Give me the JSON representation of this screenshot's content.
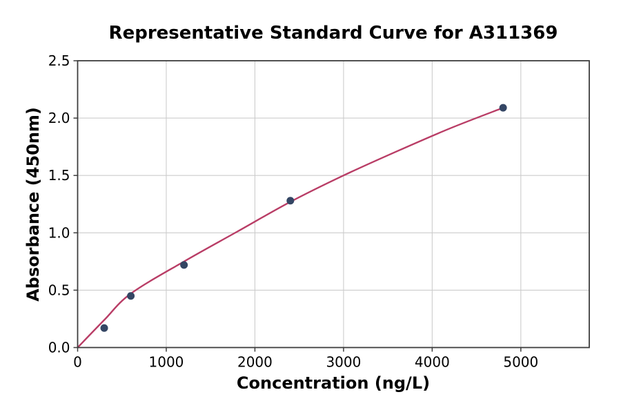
{
  "chart_data": {
    "type": "scatter",
    "title": "Representative Standard Curve for A311369",
    "xlabel": "Concentration (ng/L)",
    "ylabel": "Absorbance (450nm)",
    "xlim": [
      0,
      5772
    ],
    "ylim": [
      0,
      2.5
    ],
    "xticks": {
      "values": [
        0,
        1000,
        2000,
        3000,
        4000,
        5000
      ],
      "labels": [
        "0",
        "1000",
        "2000",
        "3000",
        "4000",
        "5000"
      ]
    },
    "yticks": {
      "values": [
        0,
        0.5,
        1.0,
        1.5,
        2.0,
        2.5
      ],
      "labels": [
        "0.0",
        "0.5",
        "1.0",
        "1.5",
        "2.0",
        "2.5"
      ]
    },
    "grid": true,
    "legend_position": "none",
    "points": [
      {
        "x": 300,
        "y": 0.17
      },
      {
        "x": 600,
        "y": 0.45
      },
      {
        "x": 1200,
        "y": 0.72
      },
      {
        "x": 2400,
        "y": 1.28
      },
      {
        "x": 4800,
        "y": 2.09
      }
    ],
    "fit_curve": [
      [
        0,
        0
      ],
      [
        300,
        0.24
      ],
      [
        600,
        0.47
      ],
      [
        1200,
        0.75
      ],
      [
        1800,
        1.01
      ],
      [
        2400,
        1.27
      ],
      [
        3000,
        1.5
      ],
      [
        3600,
        1.71
      ],
      [
        4200,
        1.91
      ],
      [
        4800,
        2.09
      ]
    ],
    "colors": {
      "curve": "#b93d66",
      "marker": "#344664",
      "grid": "#cccccc",
      "spine": "#3d3d3d",
      "text": "#000000"
    }
  }
}
